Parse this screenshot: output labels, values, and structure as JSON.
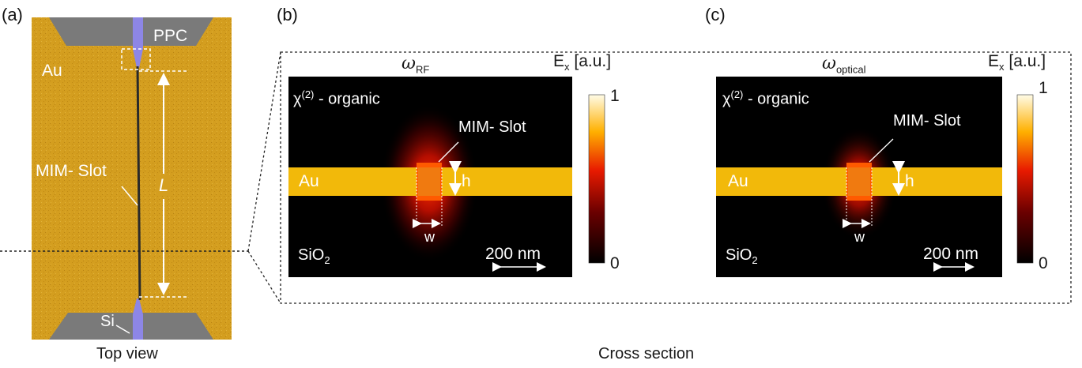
{
  "panel_a": {
    "label": "(a)",
    "ppc_label": "PPC",
    "au_label": "Au",
    "slot_label": "MIM- Slot",
    "length_label": "L",
    "si_label": "Si",
    "caption": "Top view",
    "colors": {
      "gold": "#d49e1f",
      "gray": "#7a7a7a",
      "silicon": "#8d86e6"
    }
  },
  "panel_b": {
    "label": "(b)",
    "omega_symbol": "ω",
    "omega_subscript": "RF",
    "ex_label": "E",
    "ex_subscript": "x",
    "ex_unit": "[a.u.]",
    "material_prefix": "χ",
    "material_superscript": "(2)",
    "material_label": " - organic",
    "slot_label": "MIM- Slot",
    "au_label": "Au",
    "h_label": "h",
    "w_label": "w",
    "substrate": "SiO",
    "substrate_subscript": "2",
    "scale_label": "200 nm",
    "colorbar_max": "1",
    "colorbar_min": "0"
  },
  "panel_c": {
    "label": "(c)",
    "omega_symbol": "ω",
    "omega_subscript": "optical",
    "ex_label": "E",
    "ex_subscript": "x",
    "ex_unit": "[a.u.]",
    "material_prefix": "χ",
    "material_superscript": "(2)",
    "material_label": " - organic",
    "slot_label": "MIM- Slot",
    "au_label": "Au",
    "h_label": "h",
    "w_label": "w",
    "substrate": "SiO",
    "substrate_subscript": "2",
    "scale_label": "200 nm",
    "colorbar_max": "1",
    "colorbar_min": "0"
  },
  "caption_cross_section": "Cross section"
}
